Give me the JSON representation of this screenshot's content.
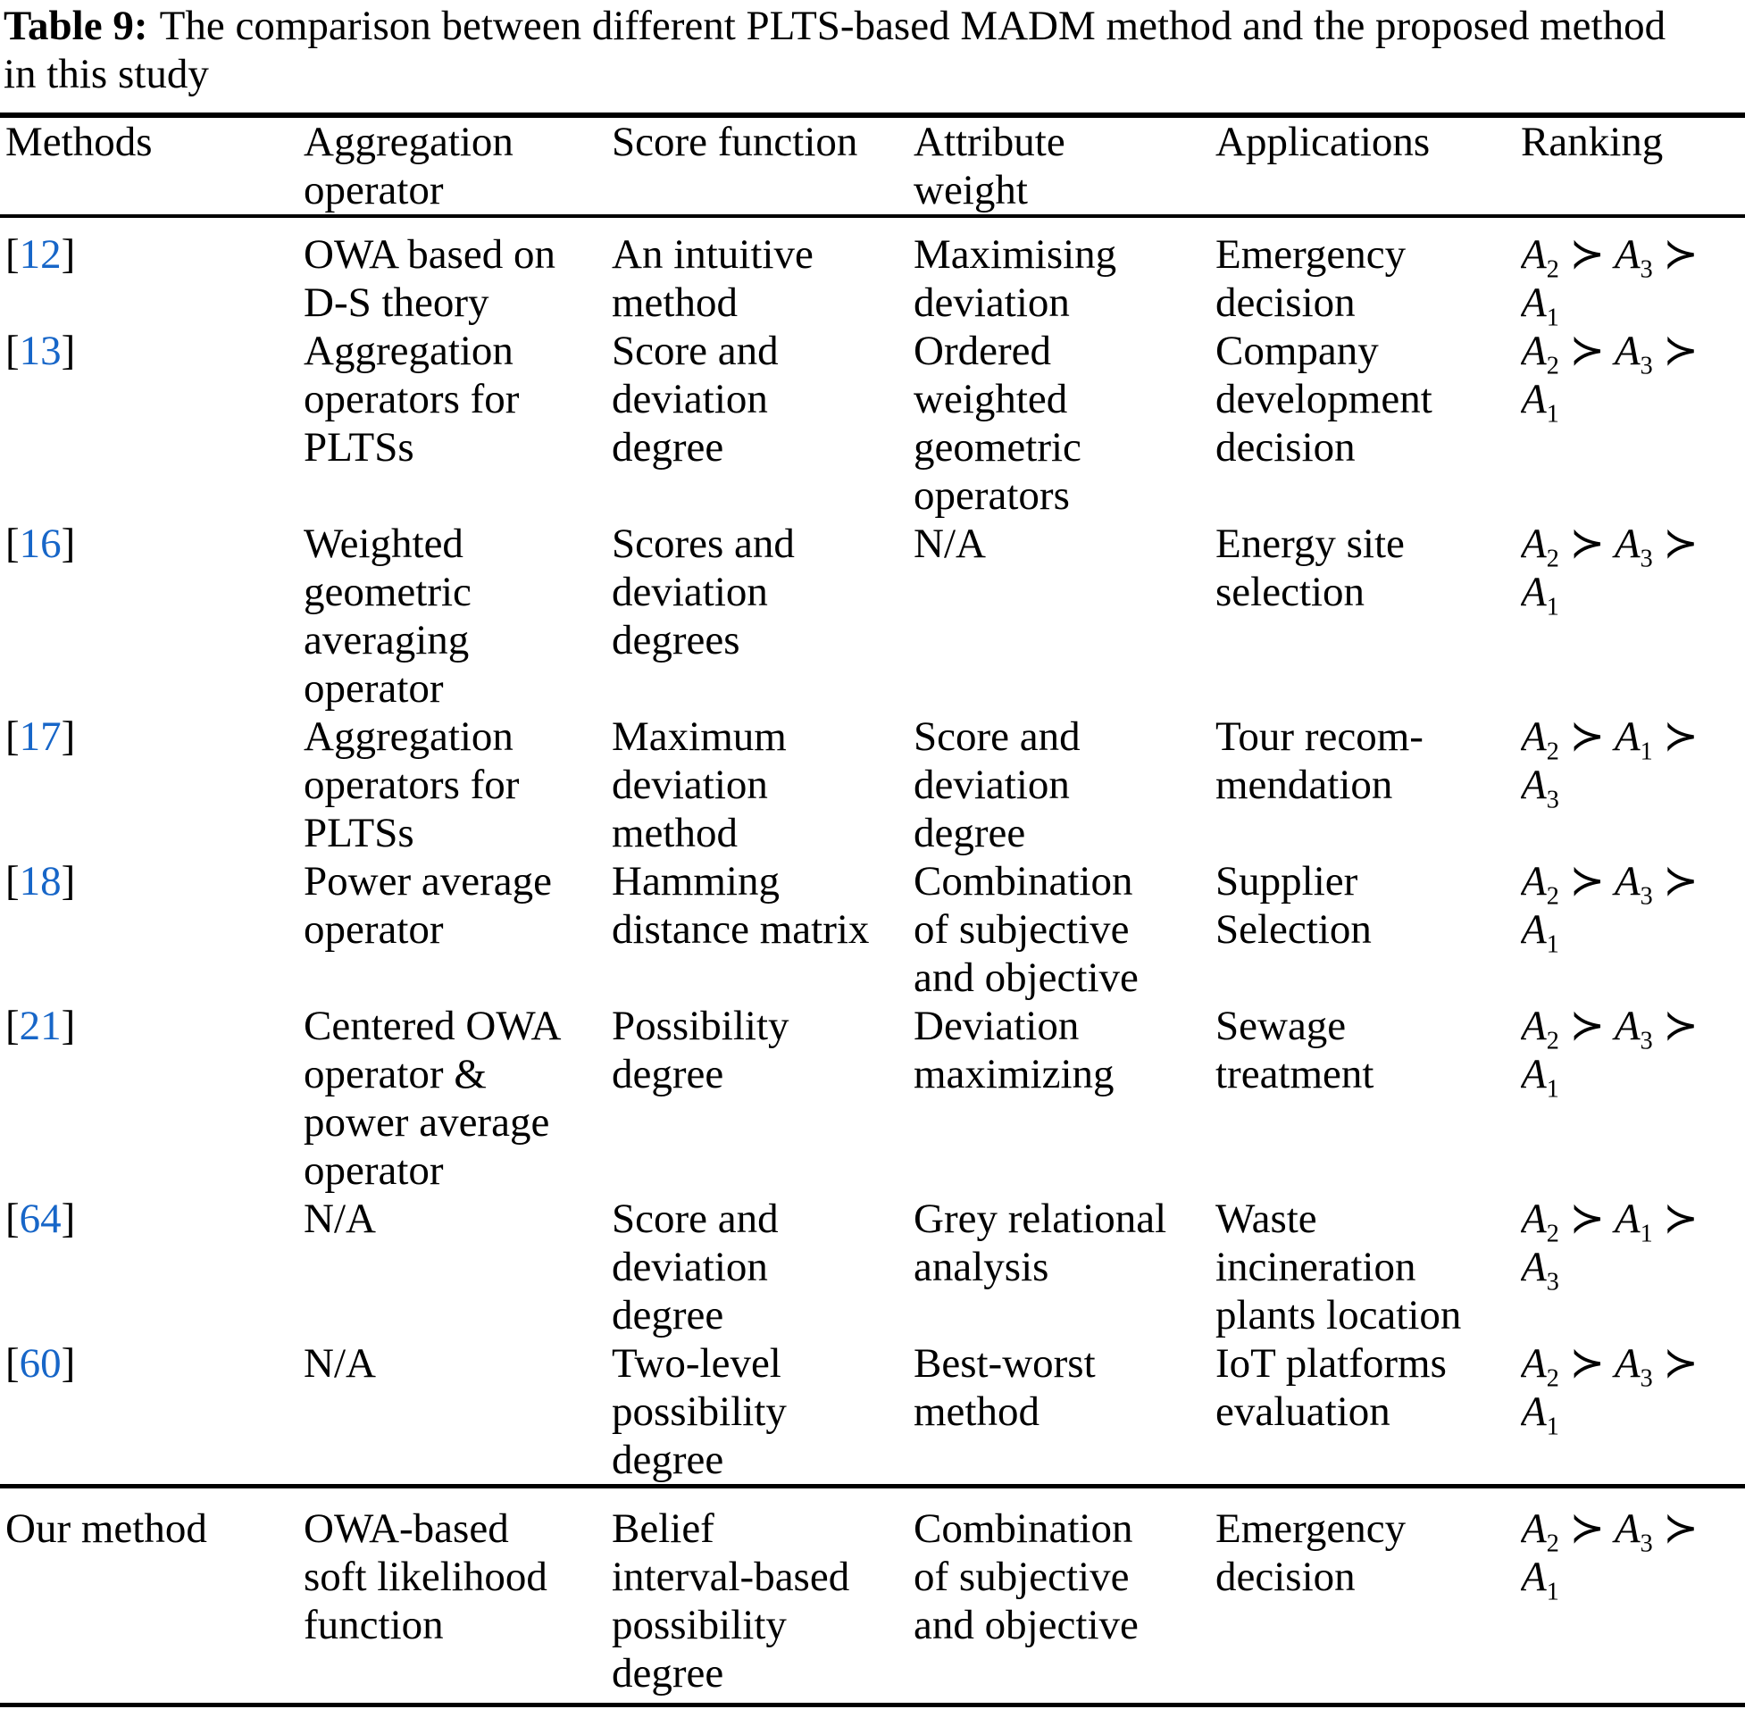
{
  "title": {
    "label": "Table 9:",
    "text": "The comparison between different PLTS-based MADM method and the proposed method\nin this study"
  },
  "citation_brackets": {
    "open": "[",
    "close": "]"
  },
  "header": {
    "methods": "Methods",
    "aggregation": "Aggregation\noperator",
    "score": "Score function",
    "weight": "Attribute\nweight",
    "applications": "Applications",
    "ranking": "Ranking"
  },
  "rows": [
    {
      "ref": "12",
      "aggregation": "OWA based on\nD-S theory",
      "score": "An intuitive\nmethod",
      "weight": "Maximising\ndeviation",
      "applications": "Emergency\ndecision",
      "ranking": "A_{2} ≻ A_{3} ≻\nA_{1}"
    },
    {
      "ref": "13",
      "aggregation": "Aggregation\noperators for\nPLTSs",
      "score": "Score and\ndeviation\ndegree",
      "weight": "Ordered\nweighted\ngeometric\noperators",
      "applications": "Company\ndevelopment\ndecision",
      "ranking": "A_{2} ≻ A_{3} ≻\nA_{1}"
    },
    {
      "ref": "16",
      "aggregation": "Weighted\ngeometric\naveraging\noperator",
      "score": "Scores and\ndeviation\ndegrees",
      "weight": "N/A",
      "applications": "Energy site\nselection",
      "ranking": "A_{2} ≻ A_{3} ≻\nA_{1}"
    },
    {
      "ref": "17",
      "aggregation": "Aggregation\noperators for\nPLTSs",
      "score": "Maximum\ndeviation\nmethod",
      "weight": "Score and\ndeviation\ndegree",
      "applications": "Tour recom-\nmendation",
      "ranking": "A_{2} ≻ A_{1} ≻\nA_{3}"
    },
    {
      "ref": "18",
      "aggregation": "Power average\noperator",
      "score": "Hamming\ndistance matrix",
      "weight": "Combination\nof subjective\nand objective",
      "applications": "Supplier\nSelection",
      "ranking": "A_{2} ≻ A_{3} ≻\nA_{1}"
    },
    {
      "ref": "21",
      "aggregation": "Centered OWA\noperator &\npower average\noperator",
      "score": "Possibility\ndegree",
      "weight": "Deviation\nmaximizing",
      "applications": "Sewage\ntreatment",
      "ranking": "A_{2} ≻ A_{3} ≻\nA_{1}"
    },
    {
      "ref": "64",
      "aggregation": "N/A",
      "score": "Score and\ndeviation\ndegree",
      "weight": "Grey relational\nanalysis",
      "applications": "Waste\nincineration\nplants location",
      "ranking": "A_{2} ≻ A_{1} ≻\nA_{3}"
    },
    {
      "ref": "60",
      "aggregation": "N/A",
      "score": "Two-level\npossibility\ndegree",
      "weight": "Best-worst\nmethod",
      "applications": "IoT platforms\nevaluation",
      "ranking": "A_{2} ≻ A_{3} ≻\nA_{1}"
    },
    {
      "method": "Our method",
      "aggregation": "OWA-based\nsoft likelihood\nfunction",
      "score": "Belief\ninterval-based\npossibility\ndegree",
      "weight": "Combination\nof subjective\nand objective",
      "applications": "Emergency\ndecision",
      "ranking": "A_{2} ≻ A_{3} ≻\nA_{1}"
    }
  ],
  "colors": {
    "citation_blue": "#1766C8",
    "text_black": "#000000",
    "rule_black": "#000000"
  }
}
